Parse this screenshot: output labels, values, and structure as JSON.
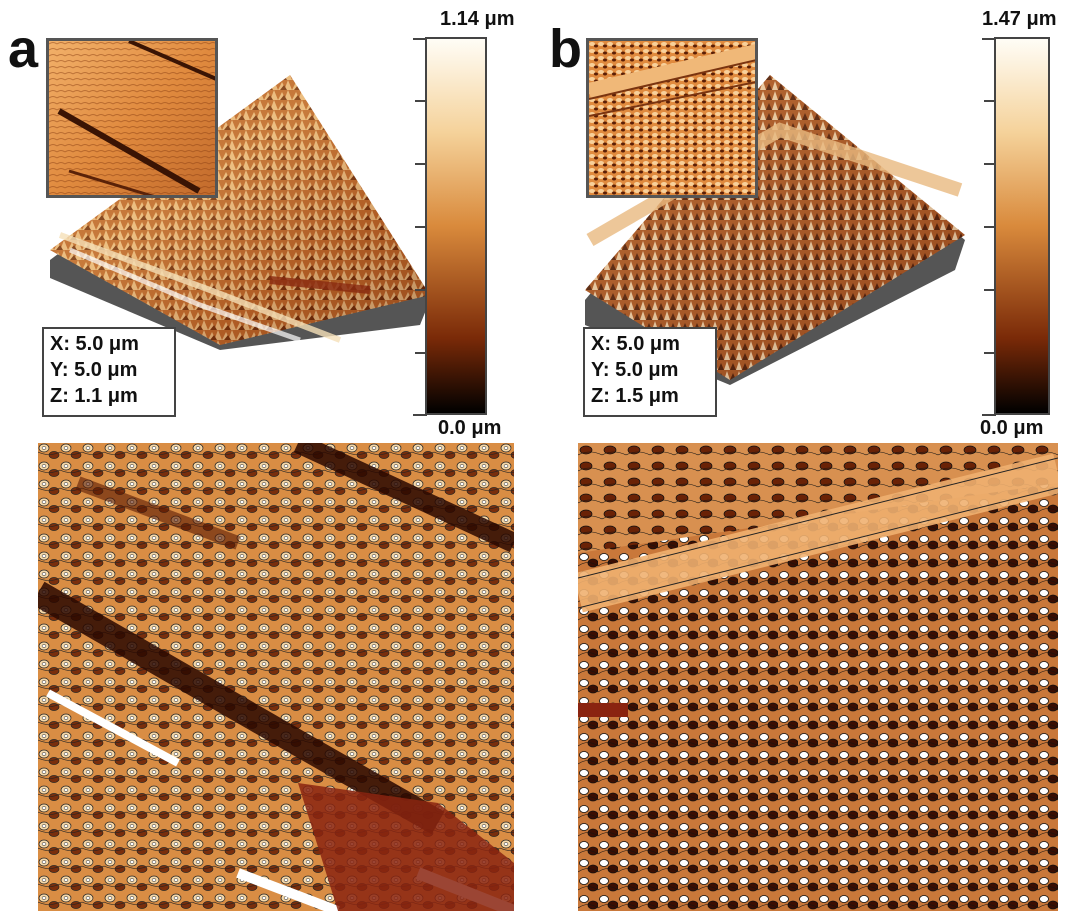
{
  "panels": [
    {
      "letter": "a",
      "scale_max": "1.14 μm",
      "scale_min": "0.0 μm",
      "dims": {
        "x": "X: 5.0 μm",
        "y": "Y: 5.0 μm",
        "z": "Z: 1.1 μm"
      }
    },
    {
      "letter": "b",
      "scale_max": "1.47 μm",
      "scale_min": "0.0 μm",
      "dims": {
        "x": "X: 5.0 μm",
        "y": "Y: 5.0 μm",
        "z": "Z: 1.5 μm"
      }
    }
  ],
  "colors": {
    "scale_top": "#fffdf6",
    "scale_light": "#f5d29a",
    "scale_mid": "#d98a3c",
    "scale_dark": "#7a2a08",
    "scale_bottom": "#000000",
    "frame": "#444444"
  }
}
